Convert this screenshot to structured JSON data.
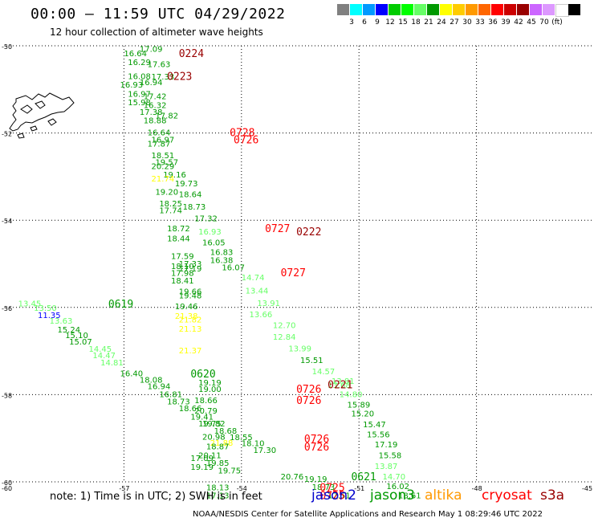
{
  "title": "00:00 – 11:59 UTC 04/29/2022",
  "subtitle": "12 hour collection of altimeter wave heights",
  "legend": {
    "unit": "(ft)",
    "colors": [
      "#808080",
      "#00ffff",
      "#0099ff",
      "#0000ff",
      "#00cc00",
      "#00ff00",
      "#66ff66",
      "#009900",
      "#ffff00",
      "#ffcc00",
      "#ff9900",
      "#ff6600",
      "#ff0000",
      "#cc0000",
      "#990000",
      "#cc66ff",
      "#dd99ff",
      "#ffffff",
      "#000000"
    ],
    "labels": [
      "3",
      "6",
      "9",
      "12",
      "15",
      "18",
      "21",
      "24",
      "27",
      "30",
      "33",
      "36",
      "39",
      "42",
      "45",
      "70"
    ]
  },
  "axes": {
    "lat_labels": [
      "-50",
      "-52",
      "-54",
      "-56",
      "-58",
      "-60"
    ],
    "lon_labels": [
      "-60",
      "-57",
      "-54",
      "-51",
      "-48",
      "-45"
    ]
  },
  "map_data": {
    "projection": "equirectangular",
    "lon_range": [
      -60,
      -45
    ],
    "lat_range": [
      -60,
      -50
    ],
    "grid": true,
    "heights": [
      {
        "lon": -57.0,
        "lat": -50.17,
        "text": "16.64",
        "color": "#009900"
      },
      {
        "lon": -56.6,
        "lat": -50.06,
        "text": "17.09",
        "color": "#009900"
      },
      {
        "lon": -56.9,
        "lat": -50.37,
        "text": "16.29",
        "color": "#009900"
      },
      {
        "lon": -56.4,
        "lat": -50.41,
        "text": "17.63",
        "color": "#009900"
      },
      {
        "lon": -56.9,
        "lat": -50.69,
        "text": "16.08",
        "color": "#009900"
      },
      {
        "lon": -56.3,
        "lat": -50.7,
        "text": "17.33",
        "color": "#009900"
      },
      {
        "lon": -57.1,
        "lat": -50.88,
        "text": "16.93",
        "color": "#009900"
      },
      {
        "lon": -56.6,
        "lat": -50.83,
        "text": "16.94",
        "color": "#009900"
      },
      {
        "lon": -56.9,
        "lat": -51.1,
        "text": "16.97",
        "color": "#009900"
      },
      {
        "lon": -56.5,
        "lat": -51.15,
        "text": "17.42",
        "color": "#009900"
      },
      {
        "lon": -56.9,
        "lat": -51.29,
        "text": "15.98",
        "color": "#009900"
      },
      {
        "lon": -56.5,
        "lat": -51.35,
        "text": "16.32",
        "color": "#009900"
      },
      {
        "lon": -56.6,
        "lat": -51.51,
        "text": "17.38",
        "color": "#009900"
      },
      {
        "lon": -56.2,
        "lat": -51.59,
        "text": "17.82",
        "color": "#009900"
      },
      {
        "lon": -56.5,
        "lat": -51.7,
        "text": "18.88",
        "color": "#009900"
      },
      {
        "lon": -56.4,
        "lat": -51.98,
        "text": "16.64",
        "color": "#009900"
      },
      {
        "lon": -56.3,
        "lat": -52.15,
        "text": "16.97",
        "color": "#009900"
      },
      {
        "lon": -56.4,
        "lat": -52.24,
        "text": "17.87",
        "color": "#009900"
      },
      {
        "lon": -56.3,
        "lat": -52.5,
        "text": "18.51",
        "color": "#009900"
      },
      {
        "lon": -56.2,
        "lat": -52.66,
        "text": "19.57",
        "color": "#009900"
      },
      {
        "lon": -56.3,
        "lat": -52.75,
        "text": "20.29",
        "color": "#009900"
      },
      {
        "lon": -56.0,
        "lat": -52.95,
        "text": "19.16",
        "color": "#009900"
      },
      {
        "lon": -56.3,
        "lat": -53.04,
        "text": "21.74",
        "color": "#ffff00"
      },
      {
        "lon": -55.7,
        "lat": -53.15,
        "text": "19.73",
        "color": "#009900"
      },
      {
        "lon": -56.2,
        "lat": -53.34,
        "text": "19.20",
        "color": "#009900"
      },
      {
        "lon": -55.6,
        "lat": -53.4,
        "text": "18.64",
        "color": "#009900"
      },
      {
        "lon": -56.1,
        "lat": -53.61,
        "text": "18.25",
        "color": "#009900"
      },
      {
        "lon": -55.5,
        "lat": -53.68,
        "text": "18.73",
        "color": "#009900"
      },
      {
        "lon": -56.1,
        "lat": -53.77,
        "text": "17.74",
        "color": "#009900"
      },
      {
        "lon": -55.2,
        "lat": -53.95,
        "text": "17.32",
        "color": "#009900"
      },
      {
        "lon": -55.9,
        "lat": -54.18,
        "text": "18.72",
        "color": "#009900"
      },
      {
        "lon": -55.1,
        "lat": -54.25,
        "text": "16.93",
        "color": "#66ff66"
      },
      {
        "lon": -55.9,
        "lat": -54.41,
        "text": "18.44",
        "color": "#009900"
      },
      {
        "lon": -55.0,
        "lat": -54.5,
        "text": "16.05",
        "color": "#009900"
      },
      {
        "lon": -54.8,
        "lat": -54.72,
        "text": "16.83",
        "color": "#009900"
      },
      {
        "lon": -55.8,
        "lat": -54.82,
        "text": "17.59",
        "color": "#009900"
      },
      {
        "lon": -54.8,
        "lat": -54.91,
        "text": "16.38",
        "color": "#009900"
      },
      {
        "lon": -55.6,
        "lat": -54.99,
        "text": "17.33",
        "color": "#009900"
      },
      {
        "lon": -55.8,
        "lat": -55.05,
        "text": "18.10",
        "color": "#009900"
      },
      {
        "lon": -54.5,
        "lat": -55.07,
        "text": "16.07",
        "color": "#009900"
      },
      {
        "lon": -55.8,
        "lat": -55.2,
        "text": "17.98",
        "color": "#009900"
      },
      {
        "lon": -55.6,
        "lat": -55.1,
        "text": "17.19",
        "color": "#009900"
      },
      {
        "lon": -54.0,
        "lat": -55.3,
        "text": "14.74",
        "color": "#66ff66"
      },
      {
        "lon": -55.8,
        "lat": -55.38,
        "text": "18.41",
        "color": "#009900"
      },
      {
        "lon": -53.9,
        "lat": -55.61,
        "text": "13.44",
        "color": "#66ff66"
      },
      {
        "lon": -55.6,
        "lat": -55.63,
        "text": "19.66",
        "color": "#009900"
      },
      {
        "lon": -55.6,
        "lat": -55.72,
        "text": "19.48",
        "color": "#009900"
      },
      {
        "lon": -53.6,
        "lat": -55.89,
        "text": "13.91",
        "color": "#66ff66"
      },
      {
        "lon": -55.7,
        "lat": -55.97,
        "text": "19.46",
        "color": "#009900"
      },
      {
        "lon": -53.8,
        "lat": -56.15,
        "text": "13.66",
        "color": "#66ff66"
      },
      {
        "lon": -55.7,
        "lat": -56.19,
        "text": "21.38",
        "color": "#ffff00"
      },
      {
        "lon": -55.6,
        "lat": -56.27,
        "text": "21.82",
        "color": "#ffff00"
      },
      {
        "lon": -53.2,
        "lat": -56.4,
        "text": "12.70",
        "color": "#66ff66"
      },
      {
        "lon": -55.6,
        "lat": -56.48,
        "text": "21.13",
        "color": "#ffff00"
      },
      {
        "lon": -53.2,
        "lat": -56.67,
        "text": "12.84",
        "color": "#66ff66"
      },
      {
        "lon": -52.8,
        "lat": -56.93,
        "text": "13.99",
        "color": "#66ff66"
      },
      {
        "lon": -55.6,
        "lat": -56.98,
        "text": "21.37",
        "color": "#ffff00"
      },
      {
        "lon": -52.5,
        "lat": -57.2,
        "text": "15.51",
        "color": "#009900"
      },
      {
        "lon": -52.2,
        "lat": -57.46,
        "text": "14.57",
        "color": "#66ff66"
      },
      {
        "lon": -51.7,
        "lat": -57.68,
        "text": "13.81",
        "color": "#66ff66"
      },
      {
        "lon": -51.8,
        "lat": -57.77,
        "text": "13.68",
        "color": "#66ff66"
      },
      {
        "lon": -55.1,
        "lat": -57.72,
        "text": "19.19",
        "color": "#009900"
      },
      {
        "lon": -55.1,
        "lat": -57.86,
        "text": "19.00",
        "color": "#009900"
      },
      {
        "lon": -51.5,
        "lat": -57.98,
        "text": "14.80",
        "color": "#66ff66"
      },
      {
        "lon": -55.2,
        "lat": -58.12,
        "text": "18.66",
        "color": "#009900"
      },
      {
        "lon": -51.3,
        "lat": -58.22,
        "text": "15.89",
        "color": "#009900"
      },
      {
        "lon": -55.2,
        "lat": -58.36,
        "text": "20.79",
        "color": "#009900"
      },
      {
        "lon": -51.2,
        "lat": -58.43,
        "text": "15.20",
        "color": "#009900"
      },
      {
        "lon": -55.1,
        "lat": -58.66,
        "text": "19.75",
        "color": "#009900"
      },
      {
        "lon": -50.9,
        "lat": -58.67,
        "text": "15.47",
        "color": "#009900"
      },
      {
        "lon": -50.8,
        "lat": -58.9,
        "text": "15.56",
        "color": "#009900"
      },
      {
        "lon": -55.0,
        "lat": -58.96,
        "text": "20.98",
        "color": "#009900"
      },
      {
        "lon": -54.8,
        "lat": -59.1,
        "text": "21.88",
        "color": "#ffff00"
      },
      {
        "lon": -54.9,
        "lat": -59.18,
        "text": "18.87",
        "color": "#009900"
      },
      {
        "lon": -50.6,
        "lat": -59.13,
        "text": "17.19",
        "color": "#009900"
      },
      {
        "lon": -50.5,
        "lat": -59.38,
        "text": "15.58",
        "color": "#009900"
      },
      {
        "lon": -55.1,
        "lat": -59.38,
        "text": "20.11",
        "color": "#009900"
      },
      {
        "lon": -55.3,
        "lat": -59.45,
        "text": "17.09",
        "color": "#009900"
      },
      {
        "lon": -50.6,
        "lat": -59.63,
        "text": "13.87",
        "color": "#66ff66"
      },
      {
        "lon": -54.9,
        "lat": -59.56,
        "text": "19.85",
        "color": "#009900"
      },
      {
        "lon": -55.3,
        "lat": -59.65,
        "text": "19.19",
        "color": "#009900"
      },
      {
        "lon": -54.6,
        "lat": -59.73,
        "text": "19.75",
        "color": "#009900"
      },
      {
        "lon": -50.4,
        "lat": -59.87,
        "text": "14.70",
        "color": "#66ff66"
      },
      {
        "lon": -53.0,
        "lat": -59.87,
        "text": "20.76",
        "color": "#009900"
      },
      {
        "lon": -52.4,
        "lat": -59.93,
        "text": "19.19",
        "color": "#009900"
      },
      {
        "lon": -50.3,
        "lat": -60.09,
        "text": "16.02",
        "color": "#009900"
      },
      {
        "lon": -52.2,
        "lat": -60.11,
        "text": "18.73",
        "color": "#009900"
      },
      {
        "lon": -54.9,
        "lat": -60.12,
        "text": "18.13",
        "color": "#009900"
      },
      {
        "lon": -50.0,
        "lat": -60.3,
        "text": "18.61",
        "color": "#009900"
      },
      {
        "lon": -51.8,
        "lat": -60.3,
        "text": "17.51",
        "color": "#009900"
      },
      {
        "lon": -54.9,
        "lat": -60.3,
        "text": "17.13",
        "color": "#009900"
      },
      {
        "lon": -59.7,
        "lat": -55.9,
        "text": "13.45",
        "color": "#66ff66"
      },
      {
        "lon": -59.3,
        "lat": -56.0,
        "text": "13.50",
        "color": "#66ff66"
      },
      {
        "lon": -59.2,
        "lat": -56.17,
        "text": "11.35",
        "color": "#0000ff"
      },
      {
        "lon": -58.9,
        "lat": -56.3,
        "text": "13.63",
        "color": "#66ff66"
      },
      {
        "lon": -58.7,
        "lat": -56.5,
        "text": "15.24",
        "color": "#009900"
      },
      {
        "lon": -58.5,
        "lat": -56.63,
        "text": "15.10",
        "color": "#009900"
      },
      {
        "lon": -58.4,
        "lat": -56.78,
        "text": "15.07",
        "color": "#009900"
      },
      {
        "lon": -57.9,
        "lat": -56.94,
        "text": "14.45",
        "color": "#66ff66"
      },
      {
        "lon": -57.8,
        "lat": -57.09,
        "text": "14.47",
        "color": "#66ff66"
      },
      {
        "lon": -57.6,
        "lat": -57.26,
        "text": "14.81",
        "color": "#66ff66"
      },
      {
        "lon": -57.1,
        "lat": -57.5,
        "text": "16.40",
        "color": "#009900"
      },
      {
        "lon": -56.6,
        "lat": -57.65,
        "text": "18.08",
        "color": "#009900"
      },
      {
        "lon": -56.4,
        "lat": -57.8,
        "text": "16.94",
        "color": "#009900"
      },
      {
        "lon": -56.1,
        "lat": -57.98,
        "text": "16.81",
        "color": "#009900"
      },
      {
        "lon": -55.9,
        "lat": -58.15,
        "text": "18.73",
        "color": "#009900"
      },
      {
        "lon": -55.6,
        "lat": -58.31,
        "text": "18.66",
        "color": "#009900"
      },
      {
        "lon": -55.3,
        "lat": -58.5,
        "text": "19.41",
        "color": "#009900"
      },
      {
        "lon": -55.0,
        "lat": -58.66,
        "text": "19.82",
        "color": "#009900"
      },
      {
        "lon": -54.7,
        "lat": -58.82,
        "text": "18.68",
        "color": "#009900"
      },
      {
        "lon": -54.3,
        "lat": -58.97,
        "text": "18.55",
        "color": "#009900"
      },
      {
        "lon": -54.0,
        "lat": -59.11,
        "text": "18.10",
        "color": "#009900"
      },
      {
        "lon": -53.7,
        "lat": -59.26,
        "text": "17.30",
        "color": "#009900"
      }
    ],
    "times": [
      {
        "lon": -55.6,
        "lat": -50.17,
        "text": "0224",
        "color": "#990000"
      },
      {
        "lon": -55.9,
        "lat": -50.69,
        "text": "0223",
        "color": "#990000"
      },
      {
        "lon": -54.3,
        "lat": -51.98,
        "text": "0728",
        "color": "#ff0000"
      },
      {
        "lon": -54.2,
        "lat": -52.15,
        "text": "0726",
        "color": "#ff0000"
      },
      {
        "lon": -53.4,
        "lat": -54.18,
        "text": "0727",
        "color": "#ff0000"
      },
      {
        "lon": -52.6,
        "lat": -54.25,
        "text": "0222",
        "color": "#990000"
      },
      {
        "lon": -53.0,
        "lat": -55.19,
        "text": "0727",
        "color": "#ff0000"
      },
      {
        "lon": -57.4,
        "lat": -55.91,
        "text": "0619",
        "color": "#009900"
      },
      {
        "lon": -55.3,
        "lat": -57.51,
        "text": "0620",
        "color": "#009900"
      },
      {
        "lon": -51.8,
        "lat": -57.76,
        "text": "0221",
        "color": "#990000"
      },
      {
        "lon": -52.6,
        "lat": -57.86,
        "text": "0726",
        "color": "#ff0000"
      },
      {
        "lon": -52.6,
        "lat": -58.12,
        "text": "0726",
        "color": "#ff0000"
      },
      {
        "lon": -52.4,
        "lat": -59.01,
        "text": "0726",
        "color": "#ff0000"
      },
      {
        "lon": -52.4,
        "lat": -59.19,
        "text": "0726",
        "color": "#ff0000"
      },
      {
        "lon": -51.2,
        "lat": -59.87,
        "text": "0621",
        "color": "#009900"
      },
      {
        "lon": -52.0,
        "lat": -60.12,
        "text": "0725",
        "color": "#ff0000"
      },
      {
        "lon": -52.0,
        "lat": -60.3,
        "text": "0725",
        "color": "#ff0000"
      }
    ]
  },
  "note": "note: 1) Time is in UTC; 2) SWH is in feet",
  "satellites": [
    {
      "name": "jason2",
      "color": "#0000cc"
    },
    {
      "name": "jason3",
      "color": "#009900"
    },
    {
      "name": "altika",
      "color": "#ff9900"
    },
    {
      "name": "cryosat",
      "color": "#ff0000"
    },
    {
      "name": "s3a",
      "color": "#990000"
    }
  ],
  "credit": "NOAA/NESDIS Center for Satellite Applications and Research    May  1 08:29:46 UTC 2022"
}
